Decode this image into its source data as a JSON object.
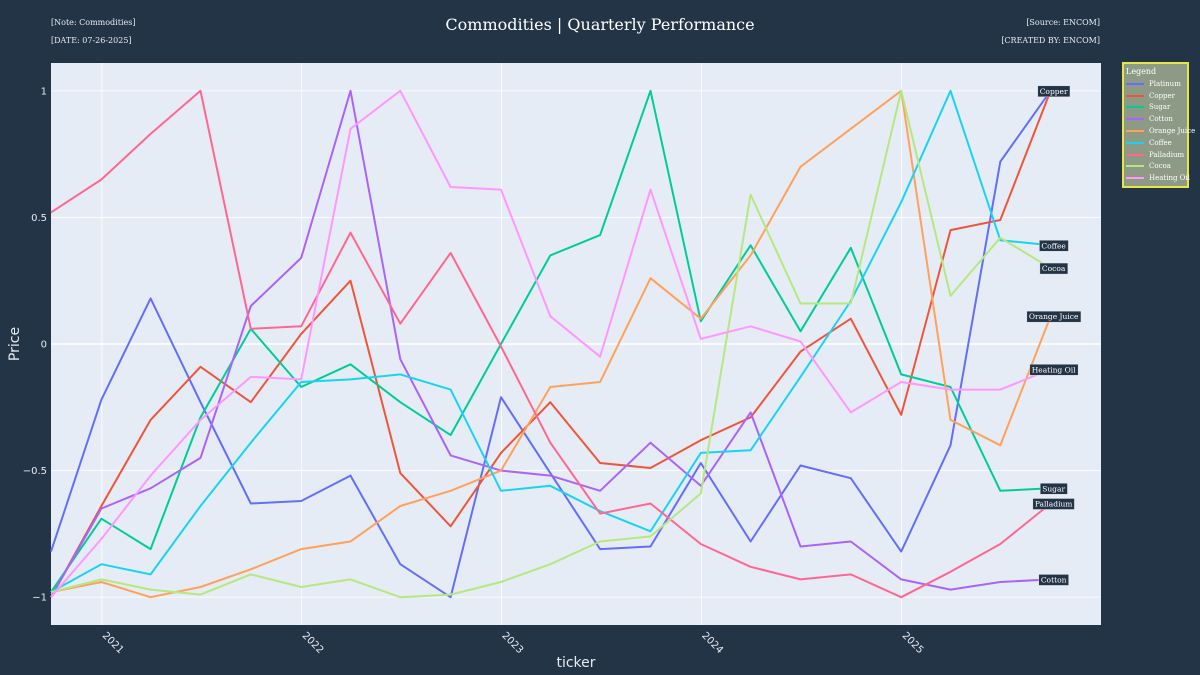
{
  "header": {
    "note": "[Note: Commodities]",
    "date": "[DATE: 07-26-2025]",
    "source": "[Source: ENCOM]",
    "created_by": "[CREATED BY: ENCOM]",
    "title": "Commodities | Quarterly Performance"
  },
  "legend": {
    "title": "Legend"
  },
  "colors": {
    "page_background": "#243447",
    "plot_background": "#e5ecf6",
    "legend_border": "#e6e64a",
    "legend_background": "#8d9a86"
  },
  "chart_data": {
    "type": "line",
    "title": "Commodities | Quarterly Performance",
    "xlabel": "ticker",
    "ylabel": "Price",
    "ylim": [
      -1.11,
      1.11
    ],
    "xlim": [
      "2020-09-30",
      "2025-12-31"
    ],
    "grid": true,
    "legend_position": "right",
    "x": [
      "2020-09-30",
      "2020-12-31",
      "2021-03-31",
      "2021-06-30",
      "2021-09-30",
      "2021-12-31",
      "2022-03-31",
      "2022-06-30",
      "2022-09-30",
      "2022-12-31",
      "2023-03-31",
      "2023-06-30",
      "2023-09-30",
      "2023-12-31",
      "2024-03-31",
      "2024-06-30",
      "2024-09-30",
      "2024-12-31",
      "2025-03-31",
      "2025-06-30",
      "2025-09-30"
    ],
    "x_tick_labels": [
      "2021",
      "2022",
      "2023",
      "2024",
      "2025"
    ],
    "x_tick_dates": [
      "2021-01-01",
      "2022-01-01",
      "2023-01-01",
      "2024-01-01",
      "2025-01-01"
    ],
    "y_tick_labels": [
      "−1",
      "−0.5",
      "0",
      "0.5",
      "1"
    ],
    "y_tick_values": [
      -1,
      -0.5,
      0,
      0.5,
      1
    ],
    "series": [
      {
        "name": "Platinum",
        "color": "#636efa",
        "end_label": "",
        "values": [
          -0.82,
          -0.22,
          0.18,
          -0.23,
          -0.63,
          -0.62,
          -0.52,
          -0.87,
          -1.0,
          -0.21,
          -0.51,
          -0.81,
          -0.8,
          -0.47,
          -0.78,
          -0.48,
          -0.53,
          -0.82,
          -0.4,
          0.72,
          1.0
        ]
      },
      {
        "name": "Copper",
        "color": "#ef553b",
        "end_label": "Copper",
        "values": [
          -1.0,
          -0.64,
          -0.3,
          -0.09,
          -0.23,
          0.04,
          0.25,
          -0.51,
          -0.72,
          -0.43,
          -0.23,
          -0.47,
          -0.49,
          -0.38,
          -0.29,
          -0.03,
          0.1,
          -0.28,
          0.45,
          0.49,
          1.0
        ]
      },
      {
        "name": "Sugar",
        "color": "#00cc96",
        "end_label": "Sugar",
        "values": [
          -0.98,
          -0.69,
          -0.81,
          -0.29,
          0.06,
          -0.17,
          -0.08,
          -0.23,
          -0.36,
          0.0,
          0.35,
          0.43,
          1.0,
          0.09,
          0.39,
          0.05,
          0.38,
          -0.12,
          -0.17,
          -0.58,
          -0.57
        ]
      },
      {
        "name": "Cotton",
        "color": "#ab63fa",
        "end_label": "Cotton",
        "values": [
          -1.0,
          -0.65,
          -0.57,
          -0.45,
          0.15,
          0.34,
          1.0,
          -0.06,
          -0.44,
          -0.5,
          -0.52,
          -0.58,
          -0.39,
          -0.56,
          -0.27,
          -0.8,
          -0.78,
          -0.93,
          -0.97,
          -0.94,
          -0.93
        ]
      },
      {
        "name": "Orange Juice",
        "color": "#ffa15a",
        "end_label": "Orange Juice",
        "values": [
          -0.98,
          -0.94,
          -1.0,
          -0.96,
          -0.89,
          -0.81,
          -0.78,
          -0.64,
          -0.58,
          -0.5,
          -0.17,
          -0.15,
          0.26,
          0.1,
          0.35,
          0.7,
          0.85,
          1.0,
          -0.3,
          -0.4,
          0.11
        ]
      },
      {
        "name": "Coffee",
        "color": "#19d3f3",
        "end_label": "Coffee",
        "values": [
          -0.98,
          -0.87,
          -0.91,
          -0.64,
          -0.39,
          -0.15,
          -0.14,
          -0.12,
          -0.18,
          -0.58,
          -0.56,
          -0.66,
          -0.74,
          -0.43,
          -0.42,
          -0.13,
          0.17,
          0.56,
          1.0,
          0.41,
          0.39
        ]
      },
      {
        "name": "Palladium",
        "color": "#ff6692",
        "end_label": "Palladium",
        "values": [
          0.52,
          0.65,
          0.83,
          1.0,
          0.06,
          0.07,
          0.44,
          0.08,
          0.36,
          -0.01,
          -0.39,
          -0.67,
          -0.63,
          -0.79,
          -0.88,
          -0.93,
          -0.91,
          -1.0,
          -0.9,
          -0.79,
          -0.63
        ]
      },
      {
        "name": "Cocoa",
        "color": "#b6e880",
        "end_label": "Cocoa",
        "values": [
          -0.98,
          -0.93,
          -0.97,
          -0.99,
          -0.91,
          -0.96,
          -0.93,
          -1.0,
          -0.99,
          -0.94,
          -0.87,
          -0.78,
          -0.76,
          -0.59,
          0.59,
          0.16,
          0.16,
          1.0,
          0.19,
          0.42,
          0.3
        ]
      },
      {
        "name": "Heating Oil",
        "color": "#ff97ff",
        "end_label": "Heating Oil",
        "values": [
          -1.0,
          -0.77,
          -0.52,
          -0.3,
          -0.13,
          -0.14,
          0.85,
          1.0,
          0.62,
          0.61,
          0.11,
          -0.05,
          0.61,
          0.02,
          0.07,
          0.01,
          -0.27,
          -0.15,
          -0.18,
          -0.18,
          -0.1
        ]
      }
    ]
  }
}
